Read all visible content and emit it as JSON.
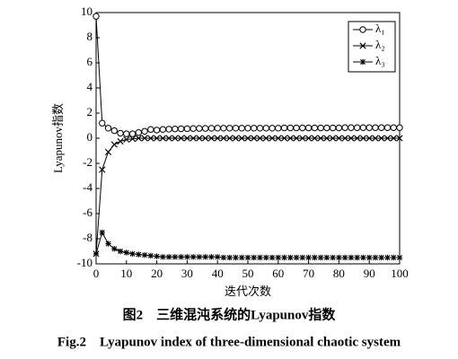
{
  "chart_data": {
    "type": "line",
    "xlabel": "迭代次数",
    "ylabel": "Lyapunov指数",
    "x": [
      0,
      2,
      4,
      6,
      8,
      10,
      12,
      14,
      16,
      18,
      20,
      22,
      24,
      26,
      28,
      30,
      32,
      34,
      36,
      38,
      40,
      42,
      44,
      46,
      48,
      50,
      52,
      54,
      56,
      58,
      60,
      62,
      64,
      66,
      68,
      70,
      72,
      74,
      76,
      78,
      80,
      82,
      84,
      86,
      88,
      90,
      92,
      94,
      96,
      98,
      100
    ],
    "series": [
      {
        "name": "λ₁",
        "color": "#000000",
        "marker": "circle",
        "values": [
          9.7,
          1.2,
          0.8,
          0.6,
          0.4,
          0.35,
          0.35,
          0.45,
          0.55,
          0.7,
          0.65,
          0.7,
          0.72,
          0.74,
          0.75,
          0.76,
          0.77,
          0.78,
          0.78,
          0.79,
          0.8,
          0.8,
          0.8,
          0.8,
          0.8,
          0.8,
          0.8,
          0.8,
          0.8,
          0.8,
          0.8,
          0.82,
          0.82,
          0.82,
          0.82,
          0.82,
          0.82,
          0.82,
          0.82,
          0.82,
          0.82,
          0.84,
          0.84,
          0.84,
          0.84,
          0.84,
          0.84,
          0.84,
          0.84,
          0.84,
          0.84
        ]
      },
      {
        "name": "λ₂",
        "color": "#000000",
        "marker": "x",
        "values": [
          -9.2,
          -2.5,
          -1.1,
          -0.5,
          -0.25,
          -0.1,
          -0.05,
          0,
          0,
          0,
          0,
          0,
          0,
          0,
          0,
          0,
          0,
          0,
          0,
          0,
          0,
          0,
          0,
          0,
          0,
          0,
          0,
          0,
          0,
          0,
          0,
          0,
          0,
          0,
          0,
          0,
          0,
          0,
          0,
          0,
          0,
          0,
          0,
          0,
          0,
          0,
          0,
          0,
          0,
          0,
          0
        ]
      },
      {
        "name": "λ₃",
        "color": "#000000",
        "marker": "asterisk",
        "values": [
          -9.2,
          -7.5,
          -8.4,
          -8.8,
          -9.0,
          -9.1,
          -9.2,
          -9.25,
          -9.3,
          -9.35,
          -9.4,
          -9.45,
          -9.45,
          -9.45,
          -9.45,
          -9.45,
          -9.45,
          -9.45,
          -9.45,
          -9.45,
          -9.45,
          -9.5,
          -9.5,
          -9.5,
          -9.5,
          -9.5,
          -9.5,
          -9.5,
          -9.5,
          -9.5,
          -9.5,
          -9.5,
          -9.5,
          -9.5,
          -9.5,
          -9.5,
          -9.5,
          -9.5,
          -9.5,
          -9.5,
          -9.5,
          -9.5,
          -9.5,
          -9.5,
          -9.5,
          -9.5,
          -9.5,
          -9.5,
          -9.5,
          -9.5,
          -9.5
        ]
      }
    ],
    "xlim": [
      0,
      100
    ],
    "xticks": [
      0,
      10,
      20,
      30,
      40,
      50,
      60,
      70,
      80,
      90,
      100
    ],
    "ylim": [
      -10,
      10
    ],
    "yticks": [
      -10,
      -8,
      -6,
      -4,
      -2,
      0,
      2,
      4,
      6,
      8,
      10
    ],
    "legend": "upper right",
    "grid": false
  },
  "captions": [
    "图2　三维混沌系统的Lyapunov指数",
    "Fig.2　Lyapunov index of three-dimensional chaotic system"
  ]
}
